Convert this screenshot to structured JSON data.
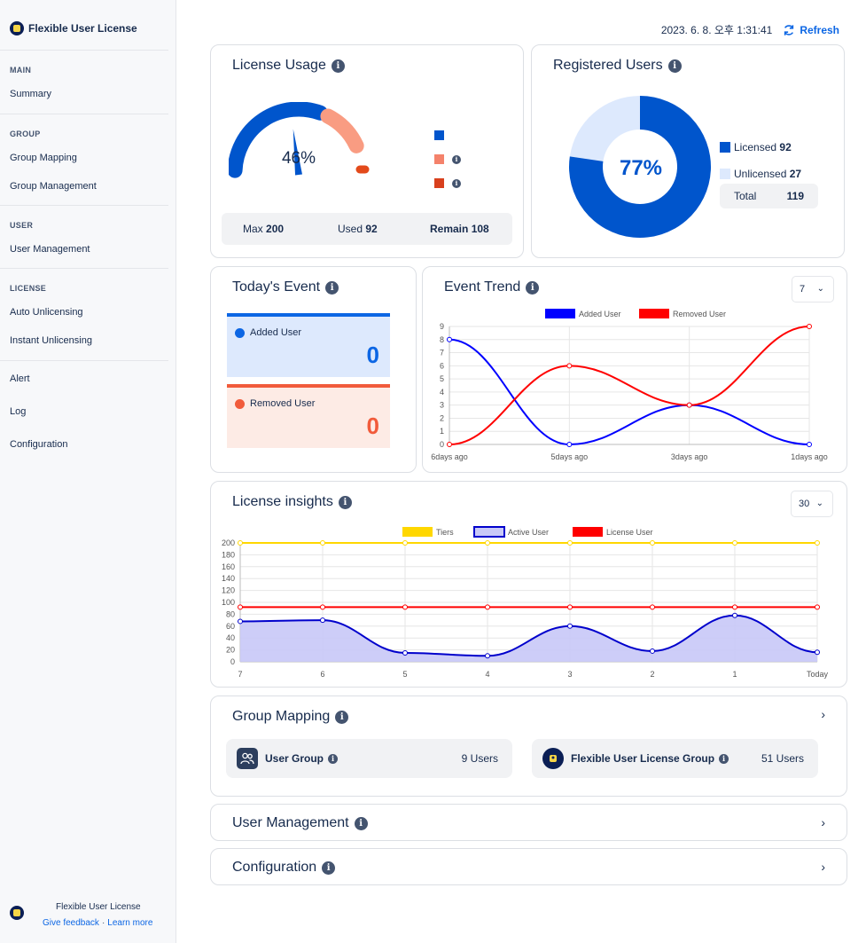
{
  "app": {
    "title": "Flexible User License"
  },
  "sidebar": {
    "sections": [
      {
        "header": "MAIN",
        "items": [
          "Summary"
        ]
      },
      {
        "header": "GROUP",
        "items": [
          "Group Mapping",
          "Group Management"
        ]
      },
      {
        "header": "USER",
        "items": [
          "User Management"
        ]
      },
      {
        "header": "LICENSE",
        "items": [
          "Auto Unlicensing",
          "Instant Unlicensing"
        ]
      }
    ],
    "extra_items": [
      "Alert",
      "Log",
      "Configuration"
    ],
    "footer": {
      "name": "Flexible User License",
      "feedback": "Give feedback",
      "separator": "·",
      "learn_more": "Learn more"
    }
  },
  "topbar": {
    "timestamp": "2023. 6. 8. 오후 1:31:41",
    "refresh_label": "Refresh"
  },
  "license_usage": {
    "title": "License Usage",
    "gauge_percent_label": "46%",
    "gauge_fraction": 0.46,
    "max_label": "Max",
    "max_value": "200",
    "used_label": "Used",
    "used_value": "92",
    "remain_label": "Remain",
    "remain_value": "108",
    "colors": {
      "used": "#0055cc",
      "warn": "#f99c82",
      "danger": "#e34a1b",
      "legend_warn": "#f4826b",
      "legend_danger": "#d8401d"
    }
  },
  "registered_users": {
    "title": "Registered Users",
    "percent_label": "77%",
    "licensed_label": "Licensed",
    "licensed_value": "92",
    "unlicensed_label": "Unlicensed",
    "unlicensed_value": "27",
    "total_label": "Total",
    "total_value": "119",
    "colors": {
      "licensed": "#0055cc",
      "unlicensed": "#dde9fd"
    }
  },
  "todays_event": {
    "title": "Today's Event",
    "added_label": "Added User",
    "added_value": "0",
    "removed_label": "Removed User",
    "removed_value": "0",
    "colors": {
      "added": "#0c66e4",
      "added_bg": "#dde9fd",
      "removed": "#f15b3b",
      "removed_bg": "#fdebe5"
    }
  },
  "event_trend": {
    "title": "Event Trend",
    "dropdown_value": "7",
    "chart_data": {
      "type": "line",
      "categories": [
        "6days ago",
        "5days ago",
        "3days ago",
        "1days ago"
      ],
      "series": [
        {
          "name": "Added User",
          "values": [
            8,
            0,
            3,
            0
          ],
          "color": "#0000ff"
        },
        {
          "name": "Removed User",
          "values": [
            0,
            6,
            3,
            9
          ],
          "color": "#ff0000"
        }
      ],
      "ylim": [
        0,
        9
      ],
      "yticks": [
        "0",
        "1",
        "2",
        "3",
        "4",
        "5",
        "6",
        "7",
        "8",
        "9"
      ]
    }
  },
  "license_insights": {
    "title": "License insights",
    "dropdown_value": "30",
    "chart_data": {
      "type": "line",
      "categories": [
        "7",
        "6",
        "5",
        "4",
        "3",
        "2",
        "1",
        "Today"
      ],
      "series": [
        {
          "name": "Tiers",
          "values": [
            200,
            200,
            200,
            200,
            200,
            200,
            200,
            200
          ],
          "color": "#ffd700"
        },
        {
          "name": "Active User",
          "values": [
            68,
            70,
            15,
            10,
            60,
            18,
            78,
            16
          ],
          "color": "#0000cc",
          "fill": "#c8c8f7"
        },
        {
          "name": "License User",
          "values": [
            92,
            92,
            92,
            92,
            92,
            92,
            92,
            92
          ],
          "color": "#ff0000"
        }
      ],
      "ylim": [
        0,
        200
      ],
      "yticks": [
        "0",
        "20",
        "40",
        "60",
        "80",
        "100",
        "120",
        "140",
        "160",
        "180",
        "200"
      ]
    }
  },
  "group_mapping": {
    "title": "Group Mapping",
    "items": [
      {
        "name": "User Group",
        "count": "9 Users"
      },
      {
        "name": "Flexible User License Group",
        "count": "51 Users"
      }
    ]
  },
  "user_management": {
    "title": "User Management"
  },
  "configuration": {
    "title": "Configuration"
  },
  "icons": {
    "info": "info-icon",
    "chevron_right": "›",
    "chevron_down": "⌄",
    "info_glyph": "i"
  }
}
